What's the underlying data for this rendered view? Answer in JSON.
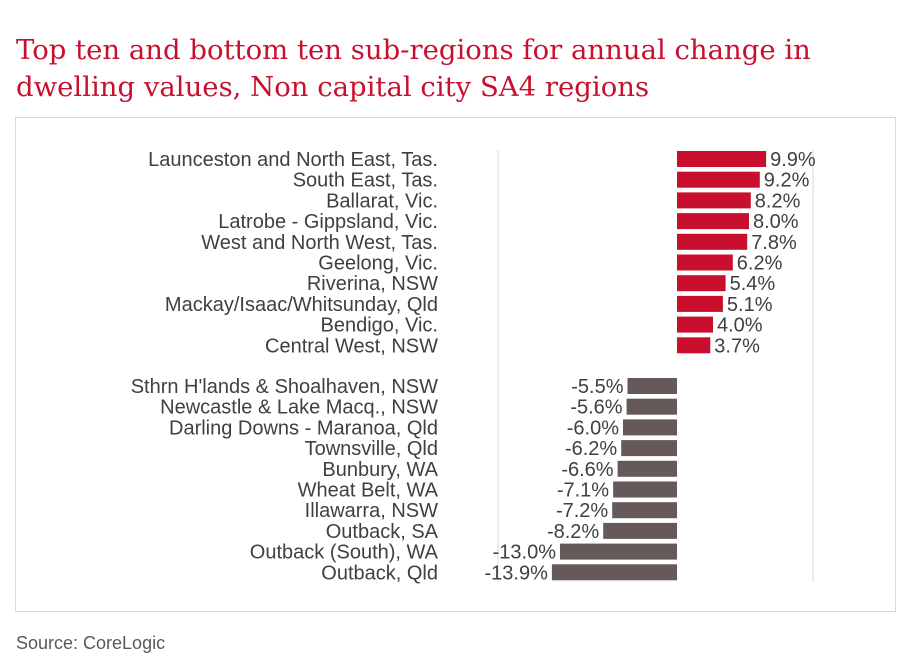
{
  "title": "Top ten and bottom ten sub-regions for annual change in dwelling values, Non capital city SA4 regions",
  "source": "Source: CoreLogic",
  "chart_data": {
    "type": "bar",
    "orientation": "horizontal",
    "title": "Top ten and bottom ten sub-regions for annual change in dwelling values, Non capital city SA4 regions",
    "xlabel": "",
    "ylabel": "",
    "xlim": [
      -15,
      10
    ],
    "grid": false,
    "legend": "none",
    "colors": {
      "positive": "#c8102e",
      "negative": "#665959",
      "axis": "#d9d9d9"
    },
    "top": {
      "categories": [
        "Launceston and North East, Tas.",
        "South East, Tas.",
        "Ballarat, Vic.",
        "Latrobe - Gippsland, Vic.",
        "West and North West, Tas.",
        "Geelong, Vic.",
        "Riverina, NSW",
        "Mackay/Isaac/Whitsunday, Qld",
        "Bendigo, Vic.",
        "Central West, NSW"
      ],
      "values": [
        9.9,
        9.2,
        8.2,
        8.0,
        7.8,
        6.2,
        5.4,
        5.1,
        4.0,
        3.7
      ],
      "labels": [
        "9.9%",
        "9.2%",
        "8.2%",
        "8.0%",
        "7.8%",
        "6.2%",
        "5.4%",
        "5.1%",
        "4.0%",
        "3.7%"
      ]
    },
    "bottom": {
      "categories": [
        "Sthrn H'lands & Shoalhaven, NSW",
        "Newcastle & Lake Macq., NSW",
        "Darling Downs - Maranoa, Qld",
        "Townsville, Qld",
        "Bunbury, WA",
        "Wheat Belt, WA",
        "Illawarra, NSW",
        "Outback, SA",
        "Outback (South), WA",
        "Outback, Qld"
      ],
      "values": [
        -5.5,
        -5.6,
        -6.0,
        -6.2,
        -6.6,
        -7.1,
        -7.2,
        -8.2,
        -13.0,
        -13.9
      ],
      "labels": [
        "-5.5%",
        "-5.6%",
        "-6.0%",
        "-6.2%",
        "-6.6%",
        "-7.1%",
        "-7.2%",
        "-8.2%",
        "-13.0%",
        "-13.9%"
      ]
    }
  }
}
